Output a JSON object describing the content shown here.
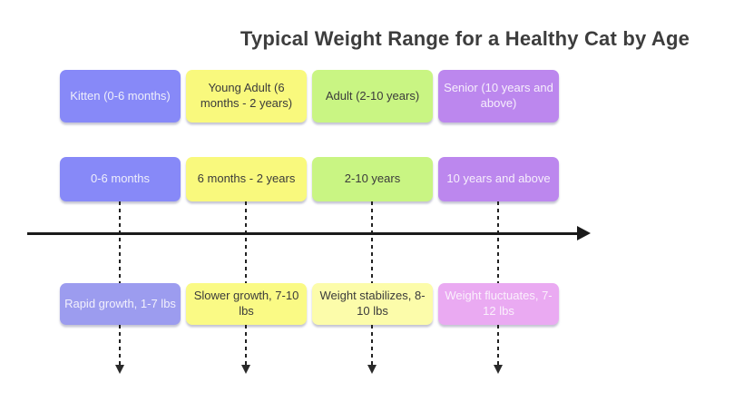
{
  "title": "Typical Weight Range for a Healthy Cat by Age",
  "timeline": {
    "direction": "left-to-right",
    "axis_color": "#1a1a1a",
    "connector_color": "#222222"
  },
  "columns": [
    {
      "stage": "Kitten (0-6 months)",
      "age_range": "0-6 months",
      "weight_note": "Rapid growth, 1-7 lbs",
      "stage_color": "#8789f8",
      "age_color": "#8789f8",
      "weight_color": "#9c9cef",
      "stage_text_color": "#eeeefb",
      "weight_text_color": "#f2f0fc"
    },
    {
      "stage": "Young Adult (6 months - 2 years)",
      "age_range": "6 months - 2 years",
      "weight_note": "Slower growth, 7-10 lbs",
      "stage_color": "#f9f97d",
      "age_color": "#f9f97d",
      "weight_color": "#fafa85",
      "stage_text_color": "#3b3b3b",
      "weight_text_color": "#3b3b3b"
    },
    {
      "stage": "Adult (2-10 years)",
      "age_range": "2-10 years",
      "weight_note": "Weight stabilizes, 8-10 lbs",
      "stage_color": "#c9f583",
      "age_color": "#c9f583",
      "weight_color": "#fcfcaa",
      "stage_text_color": "#3b3b3b",
      "weight_text_color": "#3b3b3b"
    },
    {
      "stage": "Senior (10 years and above)",
      "age_range": "10 years and above",
      "weight_note": "Weight fluctuates, 7-12 lbs",
      "stage_color": "#bc87ee",
      "age_color": "#bc87ee",
      "weight_color": "#eaaaf2",
      "stage_text_color": "#f6eefc",
      "weight_text_color": "#faf0fc"
    }
  ]
}
